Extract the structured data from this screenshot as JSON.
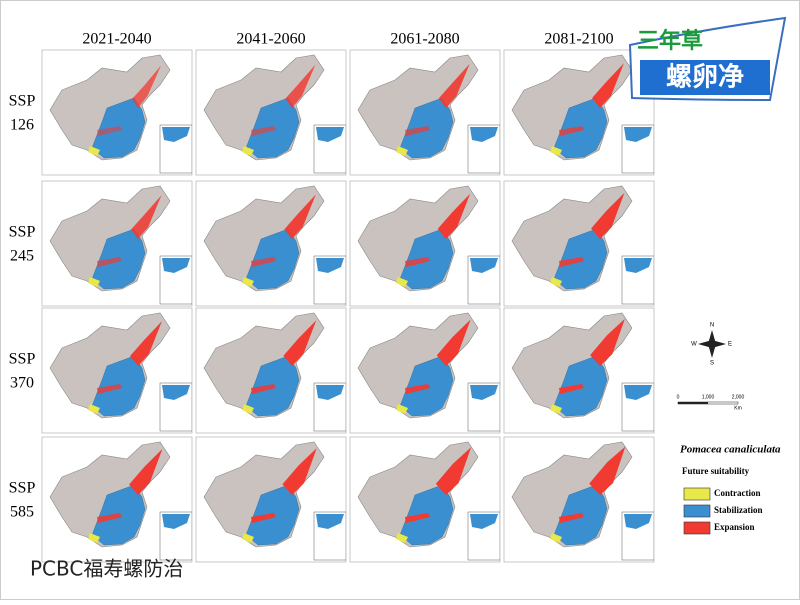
{
  "columns": [
    "2021-2040",
    "2041-2060",
    "2061-2080",
    "2081-2100"
  ],
  "rows": [
    [
      "SSP",
      "126"
    ],
    [
      "SSP",
      "245"
    ],
    [
      "SSP",
      "370"
    ],
    [
      "SSP",
      "585"
    ]
  ],
  "logo": {
    "top": "三年草",
    "bottom": "螺卵净"
  },
  "compass": {
    "north": "N",
    "south": "S",
    "east": "E",
    "west": "W"
  },
  "scale_bar": {
    "labels": [
      "0",
      "1,000",
      "2,000"
    ],
    "unit": "Km"
  },
  "legend": {
    "title": "Pomacea canaliculata",
    "subtitle": "Future suitability",
    "items": [
      {
        "label": "Contraction",
        "color": "#e8e84a"
      },
      {
        "label": "Stabilization",
        "color": "#3a8fd0"
      },
      {
        "label": "Expansion",
        "color": "#f03a32"
      }
    ]
  },
  "footer": "PCBC福寿螺防治"
}
